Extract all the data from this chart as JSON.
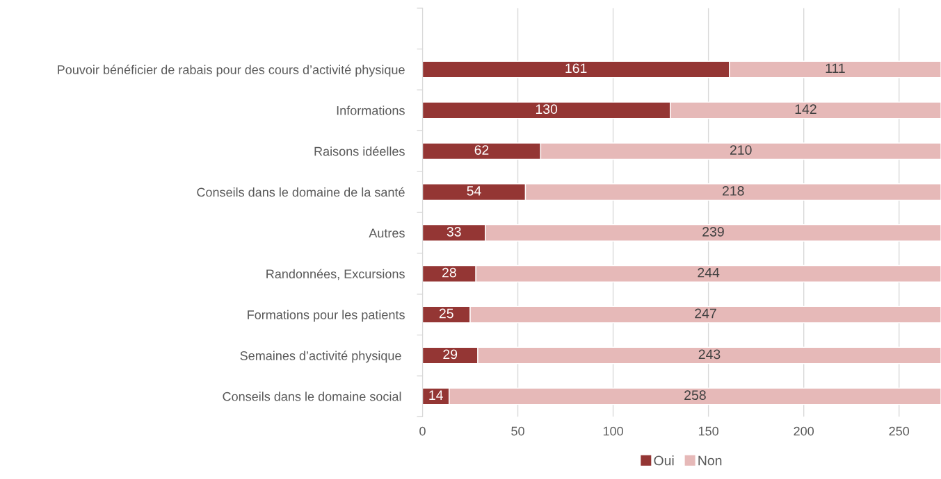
{
  "chart_data": {
    "type": "bar",
    "orientation": "horizontal",
    "stacked": true,
    "categories": [
      "Pouvoir bénéficier de rabais pour des cours d’activité physique",
      "Informations",
      "Raisons idéelles",
      "Conseils dans le domaine de la santé",
      "Autres",
      "Randonnées, Excursions",
      "Formations pour les patients",
      "Semaines d’activité physique ",
      "Conseils dans le domaine social "
    ],
    "series": [
      {
        "name": "Oui",
        "color": "#943634",
        "values": [
          161,
          130,
          62,
          54,
          33,
          28,
          25,
          29,
          14
        ]
      },
      {
        "name": "Non",
        "color": "#e6b9b8",
        "values": [
          111,
          142,
          210,
          218,
          239,
          244,
          247,
          243,
          258
        ]
      }
    ],
    "xlim": [
      0,
      272
    ],
    "xticks": [
      0,
      50,
      100,
      150,
      200,
      250
    ],
    "grid": "x",
    "legend": "bottom",
    "data_labels": true
  }
}
